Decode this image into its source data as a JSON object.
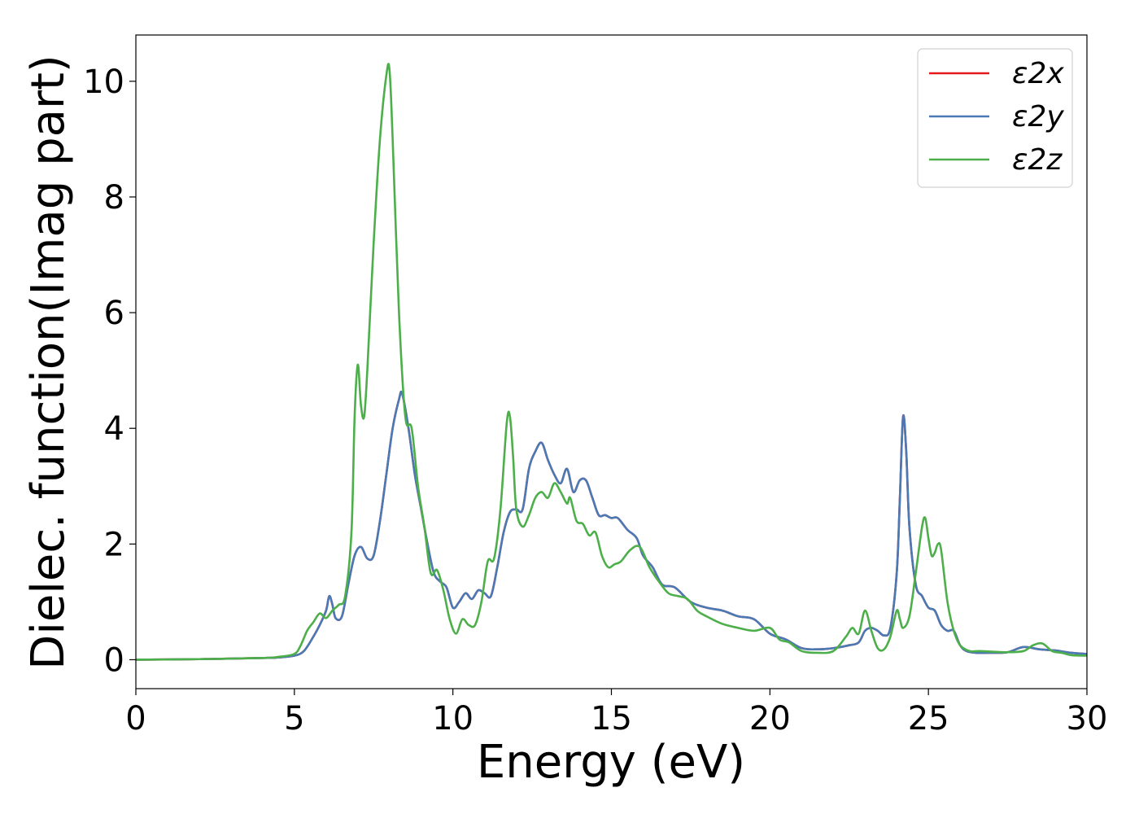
{
  "chart_data": {
    "type": "line",
    "xlabel": "Energy (eV)",
    "ylabel": "Dielec. function(Imag part)",
    "xlim": [
      0,
      30
    ],
    "ylim": [
      -0.5,
      10.8
    ],
    "xticks": [
      0,
      5,
      10,
      15,
      20,
      25,
      30
    ],
    "yticks": [
      0,
      2,
      4,
      6,
      8,
      10
    ],
    "grid": false,
    "legend_position": "top-right",
    "series": [
      {
        "name": "ε2x",
        "color": "#e41a1c",
        "x": [
          0,
          2,
          4,
          4.5,
          5,
          5.3,
          5.6,
          5.8,
          6.0,
          6.1,
          6.2,
          6.3,
          6.5,
          6.7,
          6.9,
          7.1,
          7.3,
          7.5,
          7.7,
          7.9,
          8.1,
          8.3,
          8.4,
          8.6,
          8.8,
          9.0,
          9.2,
          9.4,
          9.6,
          9.8,
          10.0,
          10.2,
          10.4,
          10.6,
          10.8,
          11.0,
          11.2,
          11.4,
          11.6,
          11.8,
          12.0,
          12.2,
          12.4,
          12.6,
          12.8,
          13.0,
          13.2,
          13.4,
          13.6,
          13.8,
          14.0,
          14.2,
          14.4,
          14.6,
          14.8,
          15.0,
          15.2,
          15.5,
          15.8,
          16.0,
          16.3,
          16.6,
          17.0,
          17.5,
          18.0,
          18.5,
          19.0,
          19.5,
          20.0,
          20.5,
          21.0,
          21.5,
          22.0,
          22.5,
          22.8,
          23.0,
          23.2,
          23.4,
          23.6,
          23.8,
          24.0,
          24.1,
          24.2,
          24.3,
          24.4,
          24.6,
          24.8,
          25.0,
          25.2,
          25.4,
          25.6,
          25.8,
          26.0,
          26.2,
          26.5,
          27.0,
          27.5,
          28.0,
          28.5,
          29.0,
          29.5,
          30.0
        ],
        "values": [
          0,
          0.01,
          0.03,
          0.04,
          0.07,
          0.15,
          0.4,
          0.6,
          0.85,
          1.1,
          0.95,
          0.72,
          0.75,
          1.3,
          1.8,
          1.95,
          1.75,
          1.8,
          2.4,
          3.2,
          4.0,
          4.5,
          4.6,
          4.0,
          3.2,
          2.6,
          2.0,
          1.5,
          1.35,
          1.25,
          0.9,
          1.0,
          1.15,
          1.05,
          1.2,
          1.15,
          1.1,
          1.6,
          2.2,
          2.55,
          2.6,
          2.6,
          3.3,
          3.6,
          3.75,
          3.45,
          3.2,
          3.05,
          3.3,
          2.9,
          3.1,
          3.1,
          2.8,
          2.5,
          2.5,
          2.45,
          2.45,
          2.25,
          2.1,
          1.8,
          1.6,
          1.3,
          1.25,
          1.0,
          0.9,
          0.85,
          0.75,
          0.7,
          0.45,
          0.35,
          0.2,
          0.18,
          0.2,
          0.25,
          0.3,
          0.5,
          0.55,
          0.5,
          0.42,
          0.55,
          1.5,
          2.8,
          4.2,
          3.6,
          2.3,
          1.3,
          1.1,
          0.9,
          0.85,
          0.6,
          0.5,
          0.5,
          0.25,
          0.15,
          0.12,
          0.12,
          0.13,
          0.22,
          0.18,
          0.16,
          0.12,
          0.1
        ]
      },
      {
        "name": "ε2y",
        "color": "#4a7ab5",
        "x": [
          0,
          2,
          4,
          4.5,
          5,
          5.3,
          5.6,
          5.8,
          6.0,
          6.1,
          6.2,
          6.3,
          6.5,
          6.7,
          6.9,
          7.1,
          7.3,
          7.5,
          7.7,
          7.9,
          8.1,
          8.3,
          8.4,
          8.6,
          8.8,
          9.0,
          9.2,
          9.4,
          9.6,
          9.8,
          10.0,
          10.2,
          10.4,
          10.6,
          10.8,
          11.0,
          11.2,
          11.4,
          11.6,
          11.8,
          12.0,
          12.2,
          12.4,
          12.6,
          12.8,
          13.0,
          13.2,
          13.4,
          13.6,
          13.8,
          14.0,
          14.2,
          14.4,
          14.6,
          14.8,
          15.0,
          15.2,
          15.5,
          15.8,
          16.0,
          16.3,
          16.6,
          17.0,
          17.5,
          18.0,
          18.5,
          19.0,
          19.5,
          20.0,
          20.5,
          21.0,
          21.5,
          22.0,
          22.5,
          22.8,
          23.0,
          23.2,
          23.4,
          23.6,
          23.8,
          24.0,
          24.1,
          24.2,
          24.3,
          24.4,
          24.6,
          24.8,
          25.0,
          25.2,
          25.4,
          25.6,
          25.8,
          26.0,
          26.2,
          26.5,
          27.0,
          27.5,
          28.0,
          28.5,
          29.0,
          29.5,
          30.0
        ],
        "values": [
          0,
          0.01,
          0.03,
          0.04,
          0.07,
          0.15,
          0.4,
          0.6,
          0.85,
          1.1,
          0.95,
          0.72,
          0.75,
          1.3,
          1.8,
          1.95,
          1.75,
          1.8,
          2.4,
          3.2,
          4.0,
          4.5,
          4.6,
          4.0,
          3.2,
          2.6,
          2.0,
          1.5,
          1.35,
          1.25,
          0.9,
          1.0,
          1.15,
          1.05,
          1.2,
          1.15,
          1.1,
          1.6,
          2.2,
          2.55,
          2.6,
          2.6,
          3.3,
          3.6,
          3.75,
          3.45,
          3.2,
          3.05,
          3.3,
          2.9,
          3.1,
          3.1,
          2.8,
          2.5,
          2.5,
          2.45,
          2.45,
          2.25,
          2.1,
          1.8,
          1.6,
          1.3,
          1.25,
          1.0,
          0.9,
          0.85,
          0.75,
          0.7,
          0.45,
          0.35,
          0.2,
          0.18,
          0.2,
          0.25,
          0.3,
          0.5,
          0.55,
          0.5,
          0.42,
          0.55,
          1.5,
          2.8,
          4.2,
          3.6,
          2.3,
          1.3,
          1.1,
          0.9,
          0.85,
          0.6,
          0.5,
          0.5,
          0.25,
          0.15,
          0.12,
          0.12,
          0.13,
          0.22,
          0.18,
          0.16,
          0.12,
          0.1
        ]
      },
      {
        "name": "ε2z",
        "color": "#4daf4a",
        "x": [
          0,
          2,
          4,
          4.5,
          5,
          5.2,
          5.4,
          5.6,
          5.8,
          6.0,
          6.2,
          6.4,
          6.6,
          6.8,
          6.9,
          7.0,
          7.1,
          7.2,
          7.3,
          7.5,
          7.7,
          7.9,
          8.0,
          8.1,
          8.3,
          8.5,
          8.7,
          8.9,
          9.1,
          9.3,
          9.5,
          9.7,
          9.9,
          10.1,
          10.3,
          10.5,
          10.7,
          10.9,
          11.1,
          11.3,
          11.5,
          11.7,
          11.8,
          11.9,
          12.0,
          12.2,
          12.4,
          12.6,
          12.8,
          13.0,
          13.2,
          13.4,
          13.6,
          13.7,
          13.9,
          14.1,
          14.3,
          14.5,
          14.7,
          14.9,
          15.1,
          15.3,
          15.6,
          15.9,
          16.2,
          16.5,
          16.8,
          17.1,
          17.4,
          17.7,
          18.0,
          18.5,
          19.0,
          19.5,
          20.0,
          20.3,
          20.6,
          21.0,
          21.5,
          22.0,
          22.4,
          22.6,
          22.8,
          23.0,
          23.2,
          23.4,
          23.6,
          23.8,
          24.0,
          24.1,
          24.2,
          24.4,
          24.6,
          24.8,
          24.9,
          25.0,
          25.1,
          25.2,
          25.3,
          25.4,
          25.6,
          25.8,
          26.0,
          26.3,
          26.6,
          27.0,
          27.5,
          28.0,
          28.3,
          28.6,
          28.9,
          29.2,
          29.5,
          30.0
        ],
        "values": [
          0,
          0.01,
          0.03,
          0.05,
          0.1,
          0.25,
          0.5,
          0.65,
          0.8,
          0.72,
          0.85,
          0.95,
          1.1,
          2.2,
          4.2,
          5.1,
          4.4,
          4.2,
          5.0,
          7.2,
          9.0,
          10.1,
          10.2,
          9.0,
          6.0,
          4.2,
          4.0,
          3.0,
          2.3,
          1.5,
          1.55,
          1.2,
          0.7,
          0.45,
          0.7,
          0.6,
          0.6,
          1.0,
          1.7,
          1.75,
          2.6,
          4.1,
          4.2,
          3.5,
          2.6,
          2.3,
          2.5,
          2.8,
          2.9,
          2.8,
          3.05,
          2.9,
          2.7,
          2.8,
          2.4,
          2.35,
          2.15,
          2.2,
          1.8,
          1.6,
          1.65,
          1.7,
          1.9,
          1.95,
          1.6,
          1.35,
          1.15,
          1.1,
          1.05,
          0.85,
          0.75,
          0.62,
          0.55,
          0.5,
          0.55,
          0.35,
          0.3,
          0.15,
          0.12,
          0.15,
          0.4,
          0.55,
          0.45,
          0.85,
          0.5,
          0.2,
          0.18,
          0.4,
          0.85,
          0.7,
          0.55,
          0.75,
          1.5,
          2.3,
          2.45,
          2.1,
          1.8,
          1.85,
          2.0,
          1.9,
          1.0,
          0.5,
          0.25,
          0.15,
          0.15,
          0.14,
          0.13,
          0.15,
          0.25,
          0.28,
          0.15,
          0.12,
          0.08,
          0.07
        ]
      }
    ]
  }
}
